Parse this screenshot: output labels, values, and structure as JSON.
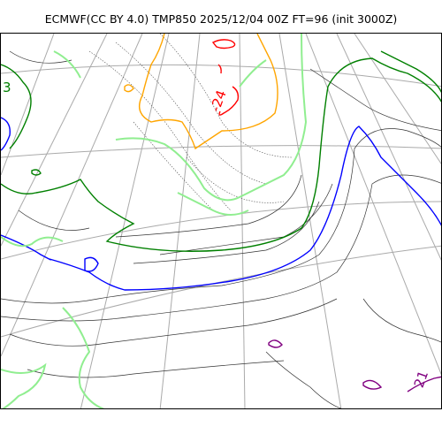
{
  "header": {
    "title": "ECMWF(CC BY 4.0) TMP850 2025/12/04 00Z FT=96 (init 3000Z)"
  },
  "map": {
    "projection": "polar stereographic",
    "graticule_color": "#aaaaaa",
    "contour_colors": {
      "warm_isotherm": "#0000ff",
      "zero_isotherm": "#008000",
      "cold_minus6": "#90ee90",
      "cold_minus12": "#ffa500",
      "cold_minus24": "#ff0000",
      "warm_plus18": "#800080",
      "minor": "#000000"
    },
    "labels": {
      "west_edge": "3",
      "cold_core": "-24",
      "southeast": "21"
    }
  }
}
